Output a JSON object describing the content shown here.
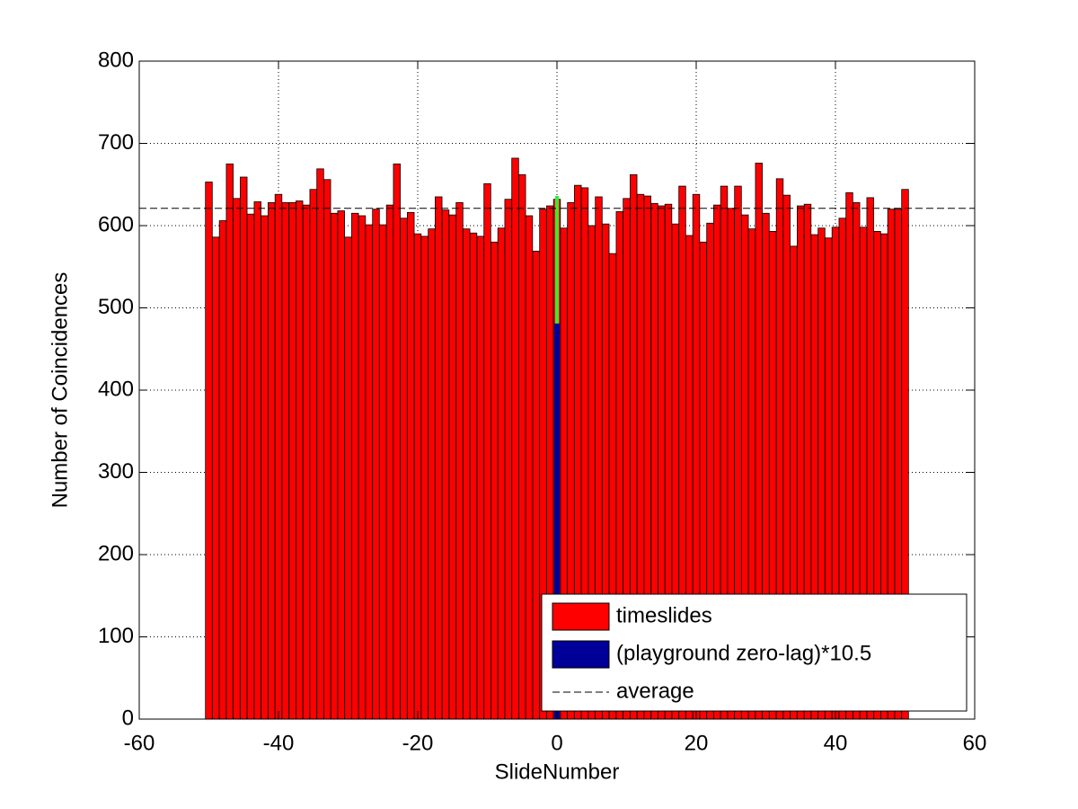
{
  "chart_data": {
    "type": "bar",
    "xlabel": "SlideNumber",
    "ylabel": "Number of Coincidences",
    "xlim": [
      -60,
      60
    ],
    "xticks": [
      -60,
      -40,
      -20,
      0,
      20,
      40,
      60
    ],
    "ylim": [
      0,
      800
    ],
    "yticks": [
      0,
      100,
      200,
      300,
      400,
      500,
      600,
      700,
      800
    ],
    "grid": true,
    "legend": "lower right",
    "x": [
      -50,
      -49,
      -48,
      -47,
      -46,
      -45,
      -44,
      -43,
      -42,
      -41,
      -40,
      -39,
      -38,
      -37,
      -36,
      -35,
      -34,
      -33,
      -32,
      -31,
      -30,
      -29,
      -28,
      -27,
      -26,
      -25,
      -24,
      -23,
      -22,
      -21,
      -20,
      -19,
      -18,
      -17,
      -16,
      -15,
      -14,
      -13,
      -12,
      -11,
      -10,
      -9,
      -8,
      -7,
      -6,
      -5,
      -4,
      -3,
      -2,
      -1,
      0,
      1,
      2,
      3,
      4,
      5,
      6,
      7,
      8,
      9,
      10,
      11,
      12,
      13,
      14,
      15,
      16,
      17,
      18,
      19,
      20,
      21,
      22,
      23,
      24,
      25,
      26,
      27,
      28,
      29,
      30,
      31,
      32,
      33,
      34,
      35,
      36,
      37,
      38,
      39,
      40,
      41,
      42,
      43,
      44,
      45,
      46,
      47,
      48,
      49,
      50
    ],
    "series": [
      {
        "name": "timeslides",
        "color": "#ff0000",
        "values": [
          653,
          586,
          606,
          675,
          633,
          659,
          614,
          629,
          612,
          628,
          638,
          628,
          628,
          630,
          625,
          644,
          669,
          656,
          615,
          618,
          586,
          615,
          612,
          601,
          620,
          601,
          625,
          675,
          609,
          616,
          590,
          587,
          596,
          635,
          619,
          613,
          628,
          596,
          591,
          587,
          651,
          580,
          597,
          632,
          682,
          662,
          612,
          569,
          620,
          624,
          632,
          597,
          628,
          649,
          646,
          600,
          635,
          602,
          566,
          617,
          633,
          662,
          638,
          636,
          627,
          624,
          626,
          602,
          648,
          588,
          638,
          580,
          603,
          625,
          648,
          621,
          648,
          613,
          596,
          676,
          615,
          593,
          657,
          637,
          575,
          624,
          626,
          589,
          597,
          585,
          598,
          609,
          640,
          628,
          598,
          634,
          593,
          590,
          620,
          620,
          644
        ]
      },
      {
        "name": "(playground zero-lag)*10.5",
        "color": "#000099",
        "x": [
          0
        ],
        "values": [
          481
        ],
        "range_color": "#33ee33",
        "range": [
          481,
          636
        ]
      },
      {
        "name": "average",
        "color": "#000000",
        "value": 621
      }
    ]
  }
}
